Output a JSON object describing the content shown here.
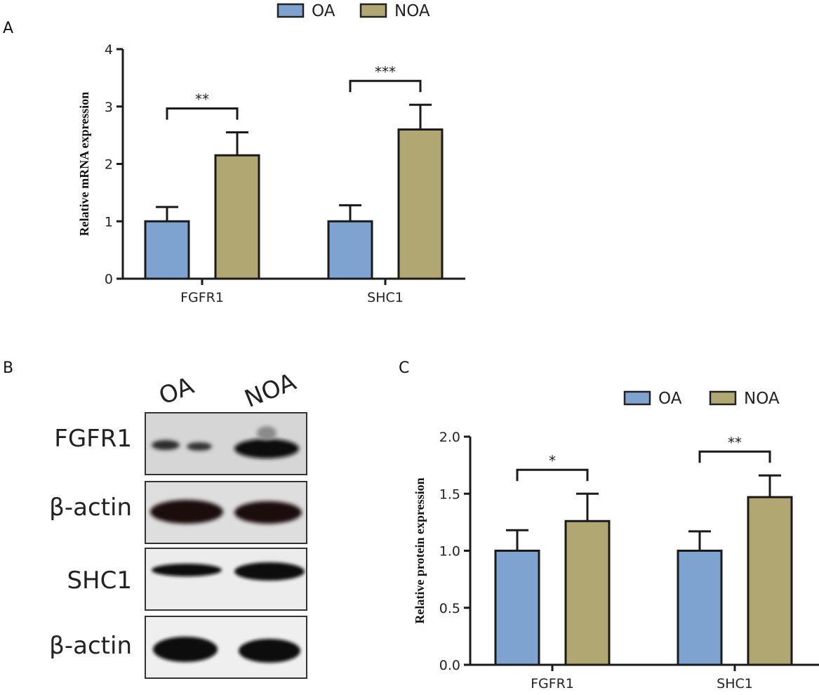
{
  "panels": {
    "a": "A",
    "b": "B",
    "c": "C"
  },
  "colors": {
    "oa": "#7fa3d0",
    "noa": "#b0a772",
    "axis": "#1a1a1a"
  },
  "chart_data": [
    {
      "type": "bar",
      "panel": "A",
      "categories": [
        "FGFR1",
        "SHC1"
      ],
      "series": [
        {
          "name": "OA",
          "values": [
            1.0,
            1.0
          ],
          "errors": [
            0.25,
            0.28
          ]
        },
        {
          "name": "NOA",
          "values": [
            2.15,
            2.6
          ],
          "errors": [
            0.4,
            0.43
          ]
        }
      ],
      "ylabel": "Relative mRNA expression",
      "ylim": [
        0,
        4
      ],
      "yticks": [
        "0",
        "1",
        "2",
        "3",
        "4"
      ],
      "significance": [
        "**",
        "***"
      ],
      "legend": "top"
    },
    {
      "type": "bar",
      "panel": "C",
      "categories": [
        "FGFR1",
        "SHC1"
      ],
      "series": [
        {
          "name": "OA",
          "values": [
            1.0,
            1.0
          ],
          "errors": [
            0.18,
            0.17
          ]
        },
        {
          "name": "NOA",
          "values": [
            1.26,
            1.47
          ],
          "errors": [
            0.24,
            0.19
          ]
        }
      ],
      "ylabel": "Relative protein expression",
      "ylim": [
        0,
        2.0
      ],
      "yticks": [
        "0.0",
        "0.5",
        "1.0",
        "1.5",
        "2.0"
      ],
      "significance": [
        "*",
        "**"
      ],
      "legend": "top-right"
    }
  ],
  "blot": {
    "lanes": [
      "OA",
      "NOA"
    ],
    "rows": [
      "FGFR1",
      "β-actin",
      "SHC1",
      "β-actin"
    ]
  }
}
